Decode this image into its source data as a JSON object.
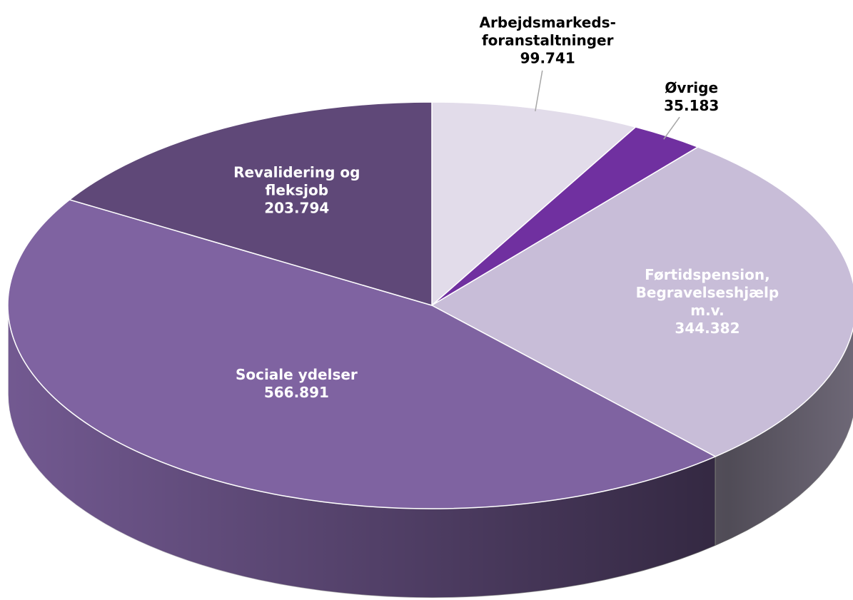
{
  "chart_data": {
    "type": "pie3d",
    "categories": [
      "Arbejdsmarkeds-\nforanstaltninger",
      "Øvrige",
      "Førtidspension,\nBegravelseshjælp m.v.",
      "Sociale ydelser",
      "Revalidering og\nfleksjob"
    ],
    "values": [
      99741,
      35183,
      344382,
      566891,
      203794
    ],
    "value_labels": [
      "99.741",
      "35.183",
      "344.382",
      "566.891",
      "203.794"
    ],
    "colors": [
      "#e2dcea",
      "#7030a0",
      "#c8bdd8",
      "#7f63a1",
      "#5f4878"
    ]
  }
}
